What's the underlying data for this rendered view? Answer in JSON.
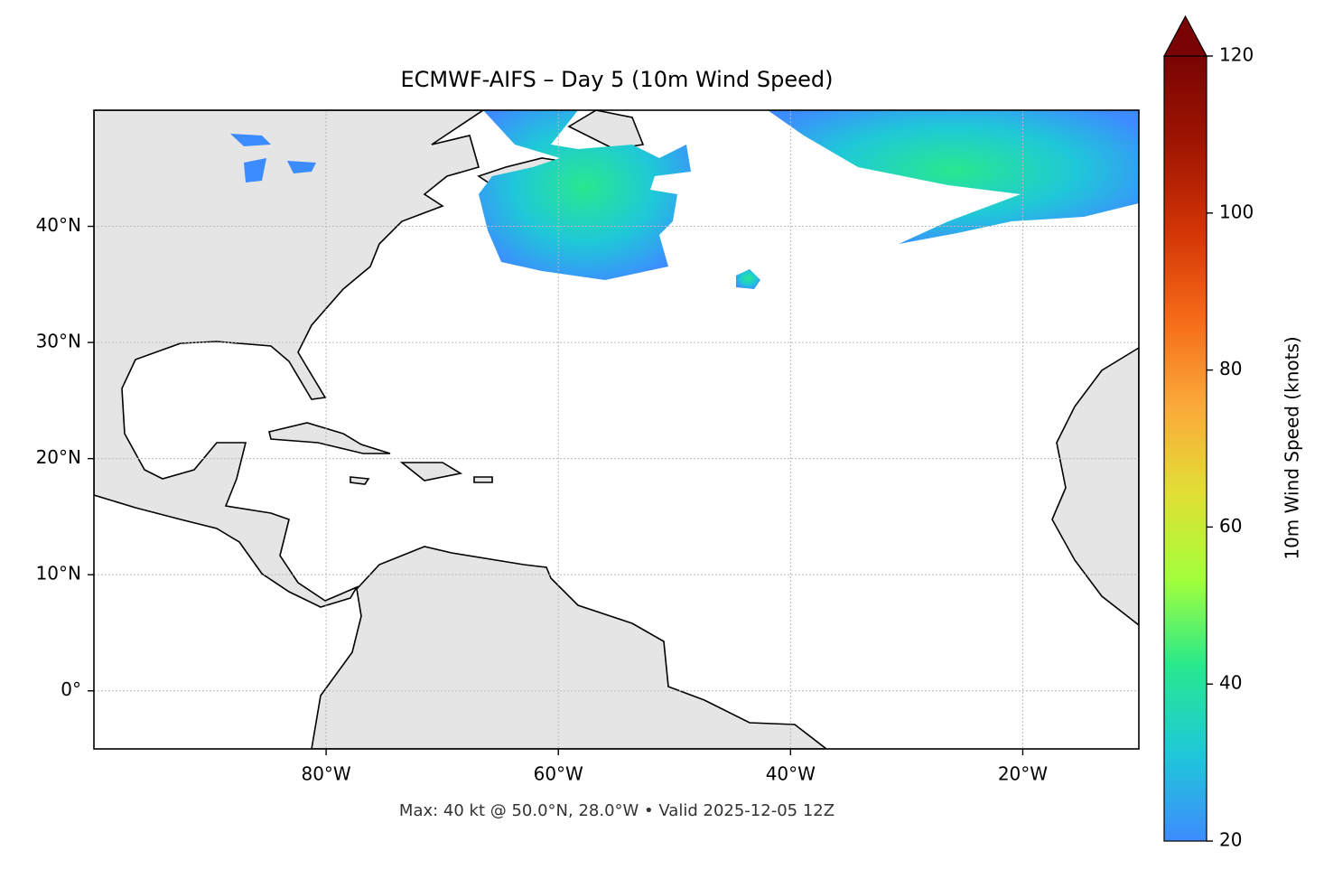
{
  "chart_data": {
    "type": "map",
    "title": "ECMWF-AIFS – Day 5 (10m Wind Speed)",
    "footer": "Max: 40 kt @ 50.0°N, 28.0°W • Valid 2025-12-05 12Z",
    "xlim": [
      -100,
      -10
    ],
    "ylim": [
      -5,
      50
    ],
    "xticks": [
      {
        "value": -80,
        "label": "80°W"
      },
      {
        "value": -60,
        "label": "60°W"
      },
      {
        "value": -40,
        "label": "40°W"
      },
      {
        "value": -20,
        "label": "20°W"
      }
    ],
    "yticks": [
      {
        "value": 0,
        "label": "0°"
      },
      {
        "value": 10,
        "label": "10°N"
      },
      {
        "value": 20,
        "label": "20°N"
      },
      {
        "value": 30,
        "label": "30°N"
      },
      {
        "value": 40,
        "label": "40°N"
      }
    ],
    "grid": true,
    "colorbar": {
      "label": "10m Wind Speed (knots)",
      "lim": [
        20,
        120
      ],
      "ticks": [
        20,
        40,
        60,
        80,
        100,
        120
      ],
      "colors": [
        "#3d8cff",
        "#1fc8d8",
        "#27e88f",
        "#a3ff3a",
        "#e2de35",
        "#fba93a",
        "#f56a17",
        "#d23405",
        "#9f1502",
        "#7a0403"
      ]
    }
  }
}
